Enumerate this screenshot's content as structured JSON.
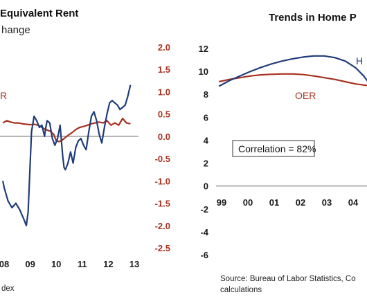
{
  "chart_data": [
    {
      "type": "line",
      "title": "Equivalent Rent",
      "subtitle": "hange",
      "footer": "dex",
      "x_ticks": [
        "08",
        "09",
        "10",
        "11",
        "12",
        "13"
      ],
      "y_right_ticks": [
        "2.0",
        "1.5",
        "1.0",
        "0.5",
        "0.0",
        "-0.5",
        "-1.0",
        "-1.5",
        "-2.0",
        "-2.5"
      ],
      "y_right_range": [
        -2.5,
        2.0
      ],
      "legend_fragment": "R",
      "colors": {
        "blue": "#1f3d7a",
        "red": "#a83220",
        "axis_labels": "#a83220",
        "zero_line": "#999999"
      },
      "series": [
        {
          "color": "#1f3d7a",
          "x": [
            2007.95,
            2008.0,
            2008.15,
            2008.3,
            2008.45,
            2008.6,
            2008.75,
            2008.85,
            2008.92,
            2009.0,
            2009.05,
            2009.15,
            2009.25,
            2009.35,
            2009.45,
            2009.55,
            2009.6,
            2009.65,
            2009.75,
            2009.85,
            2009.95,
            2010.05,
            2010.15,
            2010.25,
            2010.3,
            2010.35,
            2010.45,
            2010.55,
            2010.65,
            2010.75,
            2010.85,
            2010.95,
            2011.05,
            2011.15,
            2011.25,
            2011.35,
            2011.45,
            2011.55,
            2011.65,
            2011.75,
            2011.85,
            2011.95,
            2012.05,
            2012.15,
            2012.25,
            2012.35,
            2012.45,
            2012.55,
            2012.65,
            2012.75,
            2012.85
          ],
          "y": [
            -1.0,
            -1.15,
            -1.45,
            -1.6,
            -1.5,
            -1.65,
            -1.85,
            -2.0,
            -1.7,
            -0.6,
            0.1,
            0.45,
            0.35,
            0.2,
            0.25,
            0.0,
            0.2,
            0.35,
            0.3,
            -0.05,
            -0.2,
            -0.05,
            0.25,
            -0.45,
            -0.7,
            -0.75,
            -0.6,
            -0.35,
            -0.6,
            -0.25,
            -0.1,
            -0.05,
            -0.2,
            -0.3,
            0.1,
            0.45,
            0.55,
            0.35,
            0.05,
            -0.15,
            0.2,
            0.5,
            0.75,
            0.8,
            0.75,
            0.7,
            0.6,
            0.65,
            0.7,
            0.9,
            1.15
          ]
        },
        {
          "color": "#a83220",
          "x": [
            2007.95,
            2008.1,
            2008.25,
            2008.4,
            2008.55,
            2008.7,
            2008.85,
            2009.0,
            2009.15,
            2009.3,
            2009.45,
            2009.6,
            2009.75,
            2009.9,
            2010.0,
            2010.1,
            2010.2,
            2010.3,
            2010.45,
            2010.6,
            2010.75,
            2010.9,
            2011.05,
            2011.2,
            2011.35,
            2011.5,
            2011.65,
            2011.8,
            2011.95,
            2012.1,
            2012.25,
            2012.4,
            2012.55,
            2012.7,
            2012.85
          ],
          "y": [
            0.3,
            0.35,
            0.32,
            0.3,
            0.3,
            0.28,
            0.27,
            0.26,
            0.27,
            0.25,
            0.2,
            0.15,
            0.12,
            0.05,
            -0.1,
            -0.12,
            -0.1,
            -0.05,
            0.02,
            0.08,
            0.15,
            0.2,
            0.22,
            0.25,
            0.28,
            0.3,
            0.32,
            0.3,
            0.35,
            0.25,
            0.3,
            0.25,
            0.4,
            0.3,
            0.28
          ]
        }
      ]
    },
    {
      "type": "line",
      "title": "Trends in Home P",
      "x_ticks": [
        "99",
        "00",
        "01",
        "02",
        "03",
        "04"
      ],
      "y_ticks": [
        "12",
        "10",
        "8",
        "6",
        "4",
        "2",
        "0",
        "-2",
        "-4",
        "-6"
      ],
      "y_range": [
        -6,
        12
      ],
      "annotation": "Correlation = 82%",
      "series_labels": [
        {
          "text": "H",
          "color": "#1f3d7a"
        },
        {
          "text": "OER",
          "color": "#a83220"
        }
      ],
      "source": [
        "Source: Bureau of Labor Statistics, Co",
        "calculations"
      ],
      "colors": {
        "blue": "#1f3d7a",
        "red": "#a83220"
      },
      "series": [
        {
          "color": "#1f3d7a",
          "x": [
            1998.9,
            1999.3,
            1999.7,
            2000.1,
            2000.5,
            2000.9,
            2001.3,
            2001.7,
            2002.1,
            2002.5,
            2002.9,
            2003.3,
            2003.7,
            2004.1,
            2004.4,
            2004.6
          ],
          "y": [
            8.7,
            9.2,
            9.6,
            10.0,
            10.35,
            10.65,
            10.9,
            11.1,
            11.25,
            11.35,
            11.35,
            11.2,
            10.9,
            10.3,
            9.6,
            9.0
          ]
        },
        {
          "color": "#a83220",
          "x": [
            1998.9,
            1999.3,
            1999.7,
            2000.1,
            2000.5,
            2000.9,
            2001.3,
            2001.7,
            2002.1,
            2002.5,
            2002.9,
            2003.3,
            2003.7,
            2004.1,
            2004.6
          ],
          "y": [
            9.1,
            9.3,
            9.45,
            9.6,
            9.7,
            9.75,
            9.78,
            9.78,
            9.72,
            9.6,
            9.45,
            9.3,
            9.1,
            8.9,
            8.75
          ]
        }
      ]
    }
  ]
}
